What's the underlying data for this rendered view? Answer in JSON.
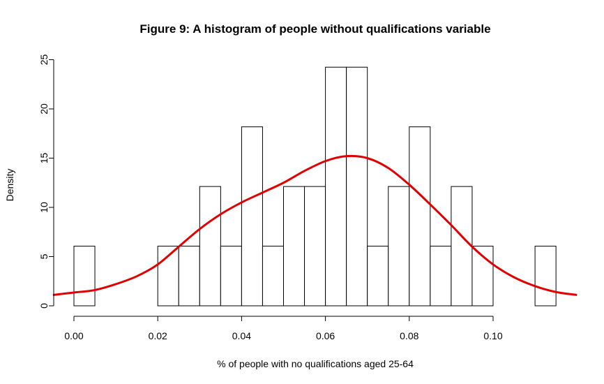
{
  "chart_data": {
    "type": "bar",
    "title": "Figure 9: A histogram of people without qualifications variable",
    "xlabel": "% of people with no qualifications aged 25-64",
    "ylabel": "Density",
    "bin_edges": [
      0.0,
      0.005,
      0.01,
      0.015,
      0.02,
      0.025,
      0.03,
      0.035,
      0.04,
      0.045,
      0.05,
      0.055,
      0.06,
      0.065,
      0.07,
      0.075,
      0.08,
      0.085,
      0.09,
      0.095,
      0.1,
      0.105,
      0.11,
      0.115
    ],
    "values": [
      6.06,
      0,
      0,
      0,
      6.06,
      6.06,
      12.12,
      6.06,
      18.18,
      6.06,
      12.12,
      12.12,
      24.24,
      24.24,
      6.06,
      12.12,
      18.18,
      6.06,
      12.12,
      6.06,
      0,
      0,
      6.06
    ],
    "xlim": [
      -0.005,
      0.12
    ],
    "ylim": [
      0,
      25
    ],
    "xticks": [
      "0.00",
      "0.02",
      "0.04",
      "0.06",
      "0.08",
      "0.10"
    ],
    "yticks": [
      "0",
      "5",
      "10",
      "15",
      "20",
      "25"
    ],
    "density_curve": {
      "color": "#e00000",
      "x": [
        -0.005,
        0.0,
        0.005,
        0.01,
        0.015,
        0.02,
        0.025,
        0.03,
        0.035,
        0.04,
        0.045,
        0.05,
        0.055,
        0.06,
        0.065,
        0.07,
        0.075,
        0.08,
        0.085,
        0.09,
        0.095,
        0.1,
        0.105,
        0.11,
        0.115,
        0.12
      ],
      "y": [
        1.1,
        1.35,
        1.6,
        2.2,
        3.0,
        4.2,
        6.0,
        7.8,
        9.3,
        10.5,
        11.5,
        12.5,
        13.7,
        14.7,
        15.2,
        15.0,
        14.0,
        12.3,
        10.3,
        8.2,
        6.0,
        4.2,
        2.9,
        2.0,
        1.4,
        1.1
      ]
    },
    "bar_fill": "#ffffff",
    "bar_stroke": "#000000",
    "grid": false
  }
}
